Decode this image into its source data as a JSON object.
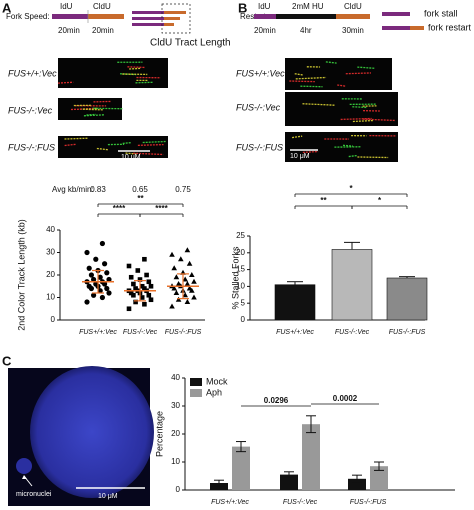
{
  "panel_labels": [
    "A",
    "B",
    "C"
  ],
  "fork_speed": {
    "label": "Fork Speed:",
    "segments": [
      "IdU",
      "CldU"
    ],
    "durations": [
      "20min",
      "20min"
    ],
    "tract_label": "CldU Tract Length"
  },
  "restart": {
    "label": "Restart:",
    "segments": [
      "IdU",
      "2mM HU",
      "CldU"
    ],
    "durations": [
      "20min",
      "4hr",
      "30min"
    ],
    "legend": [
      "fork stall",
      "fork restart"
    ]
  },
  "fibers_a": {
    "labels": [
      "FUS+/+:Vec",
      "FUS-/-:Vec",
      "FUS-/-:FUS"
    ],
    "scale_bar": "10 μM"
  },
  "fibers_b": {
    "labels": [
      "FUS+/+:Vec",
      "FUS-/-:Vec",
      "FUS-/-:FUS"
    ],
    "scale_bar": "10 μM"
  },
  "micrograph_c": {
    "arrow_label": "micronuclei",
    "scale_bar": "10 μM"
  },
  "chart_data": [
    {
      "type": "strip",
      "header_label": "Avg kb/min:",
      "header_values": [
        0.83,
        0.65,
        0.75
      ],
      "ylabel": "2nd Color Track Length (kb)",
      "categories": [
        "FUS+/+:Vec",
        "FUS-/-:Vec",
        "FUS-/-:FUS"
      ],
      "values": [
        [
          8,
          10,
          11,
          12,
          13,
          14,
          14,
          15,
          15,
          16,
          16,
          17,
          17,
          18,
          18,
          19,
          20,
          21,
          22,
          23,
          25,
          27,
          30,
          34
        ],
        [
          5,
          7,
          8,
          9,
          10,
          11,
          11,
          12,
          12,
          13,
          13,
          13,
          14,
          14,
          15,
          15,
          16,
          17,
          18,
          19,
          20,
          22,
          24,
          27
        ],
        [
          6,
          8,
          9,
          10,
          11,
          12,
          13,
          13,
          14,
          14,
          15,
          15,
          16,
          16,
          17,
          18,
          19,
          20,
          21,
          23,
          25,
          27,
          29,
          31
        ]
      ],
      "means": [
        17,
        13,
        15
      ],
      "sds": [
        5,
        4.5,
        5.5
      ],
      "marker_color": "#000000",
      "summary_color": "#e8702a",
      "ylim": [
        0,
        40
      ],
      "yticks": [
        0,
        10,
        20,
        30,
        40
      ],
      "annotations": [
        "**",
        "****",
        "****"
      ]
    },
    {
      "type": "bar",
      "ylabel": "% Stalled Forks",
      "categories": [
        "FUS+/+:Vec",
        "FUS-/-:Vec",
        "FUS-/-:FUS"
      ],
      "values": [
        10.5,
        21,
        12.5
      ],
      "errors": [
        0.9,
        2.1,
        0.4
      ],
      "colors": [
        "#111111",
        "#b8b8b8",
        "#8a8a8a"
      ],
      "ylim": [
        0,
        25
      ],
      "yticks": [
        0,
        5,
        10,
        15,
        20,
        25
      ],
      "annotations": [
        "*",
        "**",
        "*"
      ]
    },
    {
      "type": "grouped_bar",
      "ylabel": "Percentage",
      "categories": [
        "FUS+/+:Vec",
        "FUS-/-:Vec",
        "FUS-/-:FUS"
      ],
      "series": [
        {
          "name": "Mock",
          "color": "#111111",
          "values": [
            2.5,
            5.5,
            4
          ],
          "errors": [
            1,
            1,
            1.3
          ]
        },
        {
          "name": "Aph",
          "color": "#999999",
          "values": [
            15.5,
            23.5,
            8.5
          ],
          "errors": [
            1.8,
            3,
            1.5
          ]
        }
      ],
      "ylim": [
        0,
        40
      ],
      "yticks": [
        0,
        10,
        20,
        30,
        40
      ],
      "legend": "upper left",
      "annotations": [
        "0.0296",
        "0.0002"
      ]
    }
  ]
}
